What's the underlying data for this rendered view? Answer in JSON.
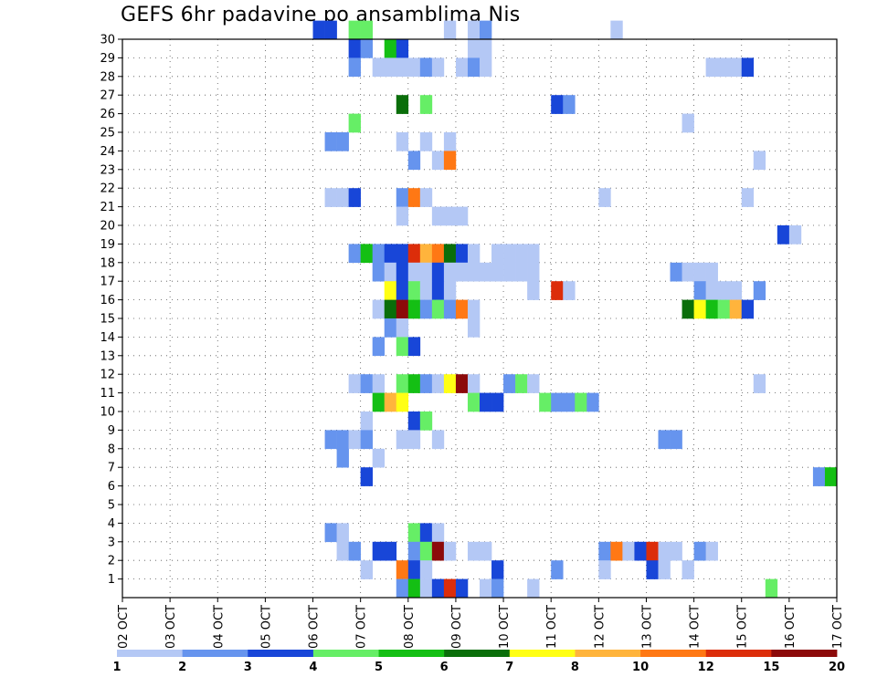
{
  "title": "GEFS 6hr padavine po ansamblima Nis",
  "chart_data": {
    "type": "heatmap",
    "title": "GEFS 6hr padavine po ansamblima Nis",
    "x_ticks": [
      "02 OCT",
      "03 OCT",
      "04 OCT",
      "05 OCT",
      "06 OCT",
      "07 OCT",
      "08 OCT",
      "09 OCT",
      "10 OCT",
      "11 OCT",
      "12 OCT",
      "13 OCT",
      "14 OCT",
      "15 OCT",
      "16 OCT",
      "17 OCT"
    ],
    "y_ticks": [
      "1",
      "2",
      "3",
      "4",
      "5",
      "6",
      "7",
      "8",
      "9",
      "10",
      "11",
      "12",
      "13",
      "14",
      "15",
      "16",
      "17",
      "18",
      "19",
      "20",
      "21",
      "22",
      "23",
      "24",
      "25",
      "26",
      "27",
      "28",
      "29",
      "30"
    ],
    "xlim_days": [
      2,
      17
    ],
    "ylim": [
      0,
      30
    ],
    "grid": "dotted",
    "colorbar": {
      "labels": [
        "1",
        "2",
        "3",
        "4",
        "5",
        "6",
        "7",
        "8",
        "10",
        "12",
        "15",
        "20"
      ],
      "colors": [
        "#b4c8f5",
        "#6694ee",
        "#1846d8",
        "#66ee66",
        "#14bf14",
        "#0a6e0a",
        "#ffff14",
        "#ffb43c",
        "#ff7814",
        "#dc2d0a",
        "#8c0a0a"
      ]
    },
    "levels": [
      "1-2",
      "2-3",
      "3-4",
      "4-5",
      "5-6",
      "6-7",
      "7-8",
      "8-10",
      "10-12",
      "12-15",
      "15-20"
    ],
    "cells": [
      {
        "member": 30,
        "day": 6.0,
        "level": 2
      },
      {
        "member": 30,
        "day": 6.25,
        "level": 2
      },
      {
        "member": 30,
        "day": 6.75,
        "level": 3
      },
      {
        "member": 30,
        "day": 7.0,
        "level": 3
      },
      {
        "member": 30,
        "day": 8.75,
        "level": 0
      },
      {
        "member": 30,
        "day": 9.25,
        "level": 0
      },
      {
        "member": 30,
        "day": 9.5,
        "level": 1
      },
      {
        "member": 30,
        "day": 12.25,
        "level": 0
      },
      {
        "member": 29,
        "day": 6.75,
        "level": 2
      },
      {
        "member": 29,
        "day": 7.0,
        "level": 1
      },
      {
        "member": 29,
        "day": 7.5,
        "level": 4
      },
      {
        "member": 29,
        "day": 7.75,
        "level": 2
      },
      {
        "member": 29,
        "day": 9.25,
        "level": 0
      },
      {
        "member": 29,
        "day": 9.5,
        "level": 0
      },
      {
        "member": 28,
        "day": 6.75,
        "level": 1
      },
      {
        "member": 28,
        "day": 7.25,
        "level": 0
      },
      {
        "member": 28,
        "day": 7.5,
        "level": 0
      },
      {
        "member": 28,
        "day": 7.75,
        "level": 0
      },
      {
        "member": 28,
        "day": 8.0,
        "level": 0
      },
      {
        "member": 28,
        "day": 8.25,
        "level": 1
      },
      {
        "member": 28,
        "day": 8.5,
        "level": 0
      },
      {
        "member": 28,
        "day": 9.0,
        "level": 0
      },
      {
        "member": 28,
        "day": 9.25,
        "level": 1
      },
      {
        "member": 28,
        "day": 9.5,
        "level": 0
      },
      {
        "member": 28,
        "day": 14.25,
        "level": 0
      },
      {
        "member": 28,
        "day": 14.5,
        "level": 0
      },
      {
        "member": 28,
        "day": 14.75,
        "level": 0
      },
      {
        "member": 28,
        "day": 15.0,
        "level": 2
      },
      {
        "member": 26,
        "day": 7.75,
        "level": 5
      },
      {
        "member": 26,
        "day": 8.25,
        "level": 3
      },
      {
        "member": 26,
        "day": 11.0,
        "level": 2
      },
      {
        "member": 26,
        "day": 11.25,
        "level": 1
      },
      {
        "member": 25,
        "day": 6.75,
        "level": 3
      },
      {
        "member": 25,
        "day": 13.75,
        "level": 0
      },
      {
        "member": 24,
        "day": 6.25,
        "level": 1
      },
      {
        "member": 24,
        "day": 6.5,
        "level": 1
      },
      {
        "member": 24,
        "day": 7.75,
        "level": 0
      },
      {
        "member": 24,
        "day": 8.25,
        "level": 0
      },
      {
        "member": 24,
        "day": 8.75,
        "level": 0
      },
      {
        "member": 23,
        "day": 8.0,
        "level": 1
      },
      {
        "member": 23,
        "day": 8.5,
        "level": 0
      },
      {
        "member": 23,
        "day": 8.75,
        "level": 8
      },
      {
        "member": 23,
        "day": 15.25,
        "level": 0
      },
      {
        "member": 21,
        "day": 6.25,
        "level": 0
      },
      {
        "member": 21,
        "day": 6.5,
        "level": 0
      },
      {
        "member": 21,
        "day": 6.75,
        "level": 2
      },
      {
        "member": 21,
        "day": 7.75,
        "level": 1
      },
      {
        "member": 21,
        "day": 8.0,
        "level": 8
      },
      {
        "member": 21,
        "day": 8.25,
        "level": 0
      },
      {
        "member": 21,
        "day": 12.0,
        "level": 0
      },
      {
        "member": 21,
        "day": 15.0,
        "level": 0
      },
      {
        "member": 20,
        "day": 7.75,
        "level": 0
      },
      {
        "member": 20,
        "day": 8.5,
        "level": 0
      },
      {
        "member": 20,
        "day": 8.75,
        "level": 0
      },
      {
        "member": 20,
        "day": 9.0,
        "level": 0
      },
      {
        "member": 19,
        "day": 15.75,
        "level": 2
      },
      {
        "member": 19,
        "day": 16.0,
        "level": 0
      },
      {
        "member": 18,
        "day": 6.75,
        "level": 1
      },
      {
        "member": 18,
        "day": 7.0,
        "level": 4
      },
      {
        "member": 18,
        "day": 7.25,
        "level": 1
      },
      {
        "member": 18,
        "day": 7.5,
        "level": 2
      },
      {
        "member": 18,
        "day": 7.75,
        "level": 2
      },
      {
        "member": 18,
        "day": 8.0,
        "level": 9
      },
      {
        "member": 18,
        "day": 8.25,
        "level": 7
      },
      {
        "member": 18,
        "day": 8.5,
        "level": 8
      },
      {
        "member": 18,
        "day": 8.75,
        "level": 5
      },
      {
        "member": 18,
        "day": 9.0,
        "level": 2
      },
      {
        "member": 18,
        "day": 9.25,
        "level": 0
      },
      {
        "member": 18,
        "day": 9.75,
        "level": 0
      },
      {
        "member": 18,
        "day": 10.0,
        "level": 0
      },
      {
        "member": 18,
        "day": 10.25,
        "level": 0
      },
      {
        "member": 18,
        "day": 10.5,
        "level": 0
      },
      {
        "member": 17,
        "day": 7.25,
        "level": 1
      },
      {
        "member": 17,
        "day": 7.5,
        "level": 0
      },
      {
        "member": 17,
        "day": 7.75,
        "level": 2
      },
      {
        "member": 17,
        "day": 8.0,
        "level": 0
      },
      {
        "member": 17,
        "day": 8.25,
        "level": 0
      },
      {
        "member": 17,
        "day": 8.5,
        "level": 2
      },
      {
        "member": 17,
        "day": 8.75,
        "level": 0
      },
      {
        "member": 17,
        "day": 9.0,
        "level": 0
      },
      {
        "member": 17,
        "day": 9.25,
        "level": 0
      },
      {
        "member": 17,
        "day": 9.5,
        "level": 0
      },
      {
        "member": 17,
        "day": 9.75,
        "level": 0
      },
      {
        "member": 17,
        "day": 10.0,
        "level": 0
      },
      {
        "member": 17,
        "day": 10.25,
        "level": 0
      },
      {
        "member": 17,
        "day": 10.5,
        "level": 0
      },
      {
        "member": 17,
        "day": 13.5,
        "level": 1
      },
      {
        "member": 17,
        "day": 13.75,
        "level": 0
      },
      {
        "member": 17,
        "day": 14.0,
        "level": 0
      },
      {
        "member": 17,
        "day": 14.25,
        "level": 0
      },
      {
        "member": 16,
        "day": 7.5,
        "level": 6
      },
      {
        "member": 16,
        "day": 7.75,
        "level": 2
      },
      {
        "member": 16,
        "day": 8.0,
        "level": 3
      },
      {
        "member": 16,
        "day": 8.25,
        "level": 0
      },
      {
        "member": 16,
        "day": 8.5,
        "level": 2
      },
      {
        "member": 16,
        "day": 8.75,
        "level": 0
      },
      {
        "member": 16,
        "day": 10.5,
        "level": 0
      },
      {
        "member": 16,
        "day": 11.0,
        "level": 9
      },
      {
        "member": 16,
        "day": 11.25,
        "level": 0
      },
      {
        "member": 16,
        "day": 14.0,
        "level": 1
      },
      {
        "member": 16,
        "day": 14.25,
        "level": 0
      },
      {
        "member": 16,
        "day": 14.5,
        "level": 0
      },
      {
        "member": 16,
        "day": 14.75,
        "level": 0
      },
      {
        "member": 16,
        "day": 15.25,
        "level": 1
      },
      {
        "member": 15,
        "day": 7.25,
        "level": 0
      },
      {
        "member": 15,
        "day": 7.5,
        "level": 5
      },
      {
        "member": 15,
        "day": 7.75,
        "level": 10
      },
      {
        "member": 15,
        "day": 8.0,
        "level": 4
      },
      {
        "member": 15,
        "day": 8.25,
        "level": 1
      },
      {
        "member": 15,
        "day": 8.5,
        "level": 3
      },
      {
        "member": 15,
        "day": 8.75,
        "level": 1
      },
      {
        "member": 15,
        "day": 9.0,
        "level": 8
      },
      {
        "member": 15,
        "day": 9.25,
        "level": 0
      },
      {
        "member": 15,
        "day": 13.75,
        "level": 5
      },
      {
        "member": 15,
        "day": 14.0,
        "level": 6
      },
      {
        "member": 15,
        "day": 14.25,
        "level": 4
      },
      {
        "member": 15,
        "day": 14.5,
        "level": 3
      },
      {
        "member": 15,
        "day": 14.75,
        "level": 7
      },
      {
        "member": 15,
        "day": 15.0,
        "level": 2
      },
      {
        "member": 14,
        "day": 7.5,
        "level": 1
      },
      {
        "member": 14,
        "day": 7.75,
        "level": 0
      },
      {
        "member": 14,
        "day": 9.25,
        "level": 0
      },
      {
        "member": 13,
        "day": 7.25,
        "level": 1
      },
      {
        "member": 13,
        "day": 7.75,
        "level": 3
      },
      {
        "member": 13,
        "day": 8.0,
        "level": 2
      },
      {
        "member": 11,
        "day": 6.75,
        "level": 0
      },
      {
        "member": 11,
        "day": 7.0,
        "level": 1
      },
      {
        "member": 11,
        "day": 7.25,
        "level": 0
      },
      {
        "member": 11,
        "day": 7.75,
        "level": 3
      },
      {
        "member": 11,
        "day": 8.0,
        "level": 4
      },
      {
        "member": 11,
        "day": 8.25,
        "level": 1
      },
      {
        "member": 11,
        "day": 8.5,
        "level": 0
      },
      {
        "member": 11,
        "day": 8.75,
        "level": 6
      },
      {
        "member": 11,
        "day": 9.0,
        "level": 10
      },
      {
        "member": 11,
        "day": 9.25,
        "level": 0
      },
      {
        "member": 11,
        "day": 10.0,
        "level": 1
      },
      {
        "member": 11,
        "day": 10.25,
        "level": 3
      },
      {
        "member": 11,
        "day": 10.5,
        "level": 0
      },
      {
        "member": 11,
        "day": 15.25,
        "level": 0
      },
      {
        "member": 10,
        "day": 7.25,
        "level": 4
      },
      {
        "member": 10,
        "day": 7.5,
        "level": 7
      },
      {
        "member": 10,
        "day": 7.75,
        "level": 6
      },
      {
        "member": 10,
        "day": 9.25,
        "level": 3
      },
      {
        "member": 10,
        "day": 9.5,
        "level": 2
      },
      {
        "member": 10,
        "day": 9.75,
        "level": 2
      },
      {
        "member": 10,
        "day": 10.75,
        "level": 3
      },
      {
        "member": 10,
        "day": 11.0,
        "level": 1
      },
      {
        "member": 10,
        "day": 11.25,
        "level": 1
      },
      {
        "member": 10,
        "day": 11.5,
        "level": 3
      },
      {
        "member": 10,
        "day": 11.75,
        "level": 1
      },
      {
        "member": 9,
        "day": 7.0,
        "level": 0
      },
      {
        "member": 9,
        "day": 8.0,
        "level": 2
      },
      {
        "member": 9,
        "day": 8.25,
        "level": 3
      },
      {
        "member": 8,
        "day": 6.25,
        "level": 1
      },
      {
        "member": 8,
        "day": 6.5,
        "level": 1
      },
      {
        "member": 8,
        "day": 6.75,
        "level": 0
      },
      {
        "member": 8,
        "day": 7.0,
        "level": 1
      },
      {
        "member": 8,
        "day": 7.75,
        "level": 0
      },
      {
        "member": 8,
        "day": 8.0,
        "level": 0
      },
      {
        "member": 8,
        "day": 8.5,
        "level": 0
      },
      {
        "member": 8,
        "day": 13.25,
        "level": 1
      },
      {
        "member": 8,
        "day": 13.5,
        "level": 1
      },
      {
        "member": 7,
        "day": 6.5,
        "level": 1
      },
      {
        "member": 7,
        "day": 7.25,
        "level": 0
      },
      {
        "member": 6,
        "day": 7.0,
        "level": 2
      },
      {
        "member": 6,
        "day": 16.5,
        "level": 1
      },
      {
        "member": 6,
        "day": 16.75,
        "level": 4
      },
      {
        "member": 3,
        "day": 6.25,
        "level": 1
      },
      {
        "member": 3,
        "day": 6.5,
        "level": 0
      },
      {
        "member": 3,
        "day": 8.0,
        "level": 3
      },
      {
        "member": 3,
        "day": 8.25,
        "level": 2
      },
      {
        "member": 3,
        "day": 8.5,
        "level": 0
      },
      {
        "member": 2,
        "day": 6.5,
        "level": 0
      },
      {
        "member": 2,
        "day": 6.75,
        "level": 1
      },
      {
        "member": 2,
        "day": 7.25,
        "level": 2
      },
      {
        "member": 2,
        "day": 7.5,
        "level": 2
      },
      {
        "member": 2,
        "day": 8.0,
        "level": 1
      },
      {
        "member": 2,
        "day": 8.25,
        "level": 3
      },
      {
        "member": 2,
        "day": 8.5,
        "level": 10
      },
      {
        "member": 2,
        "day": 8.75,
        "level": 0
      },
      {
        "member": 2,
        "day": 9.25,
        "level": 0
      },
      {
        "member": 2,
        "day": 9.5,
        "level": 0
      },
      {
        "member": 2,
        "day": 12.0,
        "level": 1
      },
      {
        "member": 2,
        "day": 12.25,
        "level": 8
      },
      {
        "member": 2,
        "day": 12.5,
        "level": 0
      },
      {
        "member": 2,
        "day": 12.75,
        "level": 2
      },
      {
        "member": 2,
        "day": 13.0,
        "level": 9
      },
      {
        "member": 2,
        "day": 13.25,
        "level": 0
      },
      {
        "member": 2,
        "day": 13.5,
        "level": 0
      },
      {
        "member": 2,
        "day": 14.0,
        "level": 1
      },
      {
        "member": 2,
        "day": 14.25,
        "level": 0
      },
      {
        "member": 1,
        "day": 7.0,
        "level": 0
      },
      {
        "member": 1,
        "day": 7.75,
        "level": 8
      },
      {
        "member": 1,
        "day": 8.0,
        "level": 2
      },
      {
        "member": 1,
        "day": 8.25,
        "level": 0
      },
      {
        "member": 1,
        "day": 9.75,
        "level": 2
      },
      {
        "member": 1,
        "day": 11.0,
        "level": 1
      },
      {
        "member": 1,
        "day": 12.0,
        "level": 0
      },
      {
        "member": 1,
        "day": 13.0,
        "level": 2
      },
      {
        "member": 1,
        "day": 13.25,
        "level": 0
      },
      {
        "member": 1,
        "day": 13.75,
        "level": 0
      },
      {
        "member": 0,
        "day": 7.75,
        "level": 1
      },
      {
        "member": 0,
        "day": 8.0,
        "level": 4
      },
      {
        "member": 0,
        "day": 8.25,
        "level": 0
      },
      {
        "member": 0,
        "day": 8.5,
        "level": 2
      },
      {
        "member": 0,
        "day": 8.75,
        "level": 9
      },
      {
        "member": 0,
        "day": 9.0,
        "level": 2
      },
      {
        "member": 0,
        "day": 9.5,
        "level": 0
      },
      {
        "member": 0,
        "day": 9.75,
        "level": 1
      },
      {
        "member": 0,
        "day": 10.5,
        "level": 0
      },
      {
        "member": 0,
        "day": 15.5,
        "level": 3
      }
    ]
  }
}
